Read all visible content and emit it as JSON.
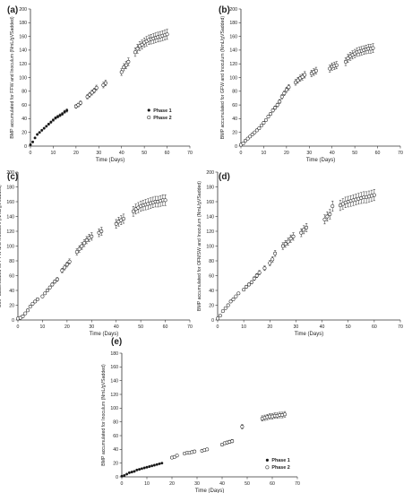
{
  "figure": {
    "panels": [
      {
        "id": "a",
        "panel_label": "(a)"
      },
      {
        "id": "b",
        "panel_label": "(b)"
      },
      {
        "id": "c",
        "panel_label": "(c)"
      },
      {
        "id": "d",
        "panel_label": "(d)"
      },
      {
        "id": "e",
        "panel_label": "(e)"
      }
    ]
  },
  "chart_data": [
    {
      "panel": "(a)",
      "type": "scatter",
      "xlabel": "Time (Days)",
      "ylabel": "BMP accumulated for FFW and Inoculum (NmL/gVSadded)",
      "xlim": [
        0,
        70
      ],
      "ylim": [
        0,
        200
      ],
      "xticks": [
        0,
        10,
        20,
        30,
        40,
        50,
        60,
        70
      ],
      "yticks": [
        0,
        20,
        40,
        60,
        80,
        100,
        120,
        140,
        160,
        180,
        200
      ],
      "legend": {
        "position": "center-right",
        "entries": [
          "Phase 1",
          "Phase 2"
        ]
      },
      "series": [
        {
          "name": "Phase 1",
          "marker": "filled",
          "points": [
            [
              0,
              2
            ],
            [
              1,
              6
            ],
            [
              2,
              12
            ],
            [
              3,
              17
            ],
            [
              4,
              20
            ],
            [
              5,
              23
            ],
            [
              6,
              26
            ],
            [
              7,
              29
            ],
            [
              8,
              32
            ],
            [
              9,
              35
            ],
            [
              10,
              38
            ],
            [
              11,
              41
            ],
            [
              12,
              43
            ],
            [
              13,
              45
            ],
            [
              14,
              47
            ],
            [
              15,
              50
            ],
            [
              16,
              52
            ]
          ]
        },
        {
          "name": "Phase 2",
          "marker": "open",
          "points": [
            [
              20,
              58
            ],
            [
              21,
              60
            ],
            [
              22,
              63
            ],
            [
              25,
              72
            ],
            [
              26,
              75
            ],
            [
              27,
              78
            ],
            [
              28,
              81
            ],
            [
              29,
              85
            ],
            [
              32,
              89
            ],
            [
              33,
              92
            ],
            [
              40,
              108
            ],
            [
              41,
              115
            ],
            [
              42,
              118
            ],
            [
              43,
              123
            ],
            [
              46,
              137
            ],
            [
              47,
              142
            ],
            [
              48,
              146
            ],
            [
              49,
              148
            ],
            [
              50,
              151
            ],
            [
              51,
              153
            ],
            [
              52,
              155
            ],
            [
              53,
              156
            ],
            [
              54,
              157
            ],
            [
              55,
              158
            ],
            [
              56,
              159
            ],
            [
              57,
              160
            ],
            [
              58,
              161
            ],
            [
              59,
              162
            ],
            [
              60,
              163
            ]
          ]
        }
      ]
    },
    {
      "panel": "(b)",
      "type": "scatter",
      "xlabel": "Time (Days)",
      "ylabel": "BMP accumulated for GFW and Inoculum (NmL/gVSadded)",
      "xlim": [
        0,
        70
      ],
      "ylim": [
        0,
        200
      ],
      "xticks": [
        0,
        10,
        20,
        30,
        40,
        50,
        60,
        70
      ],
      "yticks": [
        0,
        20,
        40,
        60,
        80,
        100,
        120,
        140,
        160,
        180,
        200
      ],
      "series": [
        {
          "name": "",
          "marker": "open",
          "points": [
            [
              0,
              2
            ],
            [
              1,
              4
            ],
            [
              2,
              8
            ],
            [
              3,
              11
            ],
            [
              4,
              14
            ],
            [
              5,
              17
            ],
            [
              6,
              20
            ],
            [
              7,
              23
            ],
            [
              8,
              26
            ],
            [
              9,
              30
            ],
            [
              10,
              34
            ],
            [
              11,
              38
            ],
            [
              12,
              43
            ],
            [
              13,
              47
            ],
            [
              14,
              52
            ],
            [
              15,
              56
            ],
            [
              16,
              60
            ],
            [
              17,
              65
            ],
            [
              18,
              72
            ],
            [
              19,
              77
            ],
            [
              20,
              82
            ],
            [
              21,
              86
            ],
            [
              24,
              93
            ],
            [
              25,
              96
            ],
            [
              26,
              99
            ],
            [
              27,
              101
            ],
            [
              28,
              104
            ],
            [
              31,
              106
            ],
            [
              32,
              108
            ],
            [
              33,
              110
            ],
            [
              39,
              113
            ],
            [
              40,
              116
            ],
            [
              41,
              117
            ],
            [
              42,
              118
            ],
            [
              46,
              123
            ],
            [
              47,
              128
            ],
            [
              48,
              131
            ],
            [
              49,
              133
            ],
            [
              50,
              135
            ],
            [
              51,
              137
            ],
            [
              52,
              138
            ],
            [
              53,
              139
            ],
            [
              54,
              140
            ],
            [
              55,
              141
            ],
            [
              56,
              142
            ],
            [
              57,
              142
            ],
            [
              58,
              143
            ]
          ]
        }
      ]
    },
    {
      "panel": "(c)",
      "type": "scatter",
      "xlabel": "Time (Days)",
      "ylabel": "BMP accumulated for PFW and Inoculum (NmL/gVSadded)",
      "xlim": [
        0,
        70
      ],
      "ylim": [
        0,
        200
      ],
      "xticks": [
        0,
        10,
        20,
        30,
        40,
        50,
        60,
        70
      ],
      "yticks": [
        0,
        20,
        40,
        60,
        80,
        100,
        120,
        140,
        160,
        180,
        200
      ],
      "series": [
        {
          "name": "",
          "marker": "open",
          "points": [
            [
              0,
              2
            ],
            [
              1,
              3
            ],
            [
              2,
              5
            ],
            [
              3,
              9
            ],
            [
              4,
              13
            ],
            [
              5,
              18
            ],
            [
              6,
              22
            ],
            [
              7,
              25
            ],
            [
              8,
              28
            ],
            [
              10,
              32
            ],
            [
              11,
              36
            ],
            [
              12,
              40
            ],
            [
              13,
              44
            ],
            [
              14,
              48
            ],
            [
              15,
              52
            ],
            [
              16,
              55
            ],
            [
              18,
              67
            ],
            [
              19,
              71
            ],
            [
              20,
              75
            ],
            [
              21,
              79
            ],
            [
              24,
              92
            ],
            [
              25,
              96
            ],
            [
              26,
              100
            ],
            [
              27,
              104
            ],
            [
              28,
              108
            ],
            [
              29,
              111
            ],
            [
              30,
              113
            ],
            [
              33,
              118
            ],
            [
              34,
              120
            ],
            [
              40,
              130
            ],
            [
              41,
              133
            ],
            [
              42,
              135
            ],
            [
              43,
              137
            ],
            [
              47,
              147
            ],
            [
              48,
              150
            ],
            [
              49,
              152
            ],
            [
              50,
              154
            ],
            [
              51,
              155
            ],
            [
              52,
              156
            ],
            [
              53,
              157
            ],
            [
              54,
              158
            ],
            [
              55,
              159
            ],
            [
              56,
              160
            ],
            [
              57,
              160
            ],
            [
              58,
              161
            ],
            [
              59,
              162
            ],
            [
              60,
              162
            ]
          ]
        }
      ]
    },
    {
      "panel": "(d)",
      "type": "scatter",
      "xlabel": "Time (Days)",
      "ylabel": "BMP accumulated for OFMSW and Inoculum (NmL/gVSadded)",
      "xlim": [
        0,
        70
      ],
      "ylim": [
        0,
        200
      ],
      "xticks": [
        0,
        10,
        20,
        30,
        40,
        50,
        60,
        70
      ],
      "yticks": [
        0,
        20,
        40,
        60,
        80,
        100,
        120,
        140,
        160,
        180,
        200
      ],
      "series": [
        {
          "name": "",
          "marker": "open",
          "points": [
            [
              0,
              2
            ],
            [
              1,
              6
            ],
            [
              2,
              12
            ],
            [
              3,
              16
            ],
            [
              4,
              20
            ],
            [
              5,
              25
            ],
            [
              6,
              28
            ],
            [
              7,
              32
            ],
            [
              8,
              36
            ],
            [
              10,
              41
            ],
            [
              11,
              45
            ],
            [
              12,
              48
            ],
            [
              13,
              51
            ],
            [
              14,
              56
            ],
            [
              15,
              60
            ],
            [
              16,
              64
            ],
            [
              18,
              70
            ],
            [
              20,
              77
            ],
            [
              21,
              82
            ],
            [
              22,
              90
            ],
            [
              25,
              100
            ],
            [
              26,
              103
            ],
            [
              27,
              106
            ],
            [
              28,
              110
            ],
            [
              29,
              113
            ],
            [
              32,
              118
            ],
            [
              33,
              122
            ],
            [
              34,
              125
            ],
            [
              41,
              136
            ],
            [
              42,
              140
            ],
            [
              43,
              143
            ],
            [
              44,
              154
            ],
            [
              47,
              155
            ],
            [
              48,
              157
            ],
            [
              49,
              159
            ],
            [
              50,
              160
            ],
            [
              51,
              161
            ],
            [
              52,
              162
            ],
            [
              53,
              163
            ],
            [
              54,
              164
            ],
            [
              55,
              165
            ],
            [
              56,
              166
            ],
            [
              57,
              166
            ],
            [
              58,
              167
            ],
            [
              59,
              168
            ],
            [
              60,
              169
            ]
          ]
        }
      ]
    },
    {
      "panel": "(e)",
      "type": "scatter",
      "xlabel": "Time (Days)",
      "ylabel": "BMP accumulated for Inoculum (NmL/gVSadded)",
      "xlim": [
        0,
        70
      ],
      "ylim": [
        0,
        180
      ],
      "xticks": [
        0,
        10,
        20,
        30,
        40,
        50,
        60,
        70
      ],
      "yticks": [
        0,
        20,
        40,
        60,
        80,
        100,
        120,
        140,
        160,
        180
      ],
      "legend": {
        "position": "bottom-right",
        "entries": [
          "Phase 1",
          "Phase 2"
        ]
      },
      "series": [
        {
          "name": "Phase 1",
          "marker": "filled",
          "points": [
            [
              0,
              1
            ],
            [
              1,
              2
            ],
            [
              2,
              4
            ],
            [
              3,
              6
            ],
            [
              4,
              7
            ],
            [
              5,
              8
            ],
            [
              6,
              10
            ],
            [
              7,
              11
            ],
            [
              8,
              12
            ],
            [
              9,
              13
            ],
            [
              10,
              14
            ],
            [
              11,
              15
            ],
            [
              12,
              16
            ],
            [
              13,
              17
            ],
            [
              14,
              18
            ],
            [
              15,
              19
            ],
            [
              16,
              20
            ]
          ]
        },
        {
          "name": "Phase 2",
          "marker": "open",
          "points": [
            [
              20,
              28
            ],
            [
              21,
              29
            ],
            [
              22,
              31
            ],
            [
              25,
              34
            ],
            [
              26,
              35
            ],
            [
              27,
              35
            ],
            [
              28,
              36
            ],
            [
              29,
              37
            ],
            [
              32,
              38
            ],
            [
              33,
              39
            ],
            [
              34,
              40
            ],
            [
              40,
              47
            ],
            [
              41,
              49
            ],
            [
              42,
              50
            ],
            [
              43,
              51
            ],
            [
              44,
              52
            ],
            [
              48,
              73
            ],
            [
              56,
              85
            ],
            [
              57,
              86
            ],
            [
              58,
              87
            ],
            [
              59,
              88
            ],
            [
              60,
              88
            ],
            [
              61,
              89
            ],
            [
              62,
              89
            ],
            [
              63,
              90
            ],
            [
              64,
              90
            ],
            [
              65,
              91
            ]
          ]
        }
      ]
    }
  ]
}
